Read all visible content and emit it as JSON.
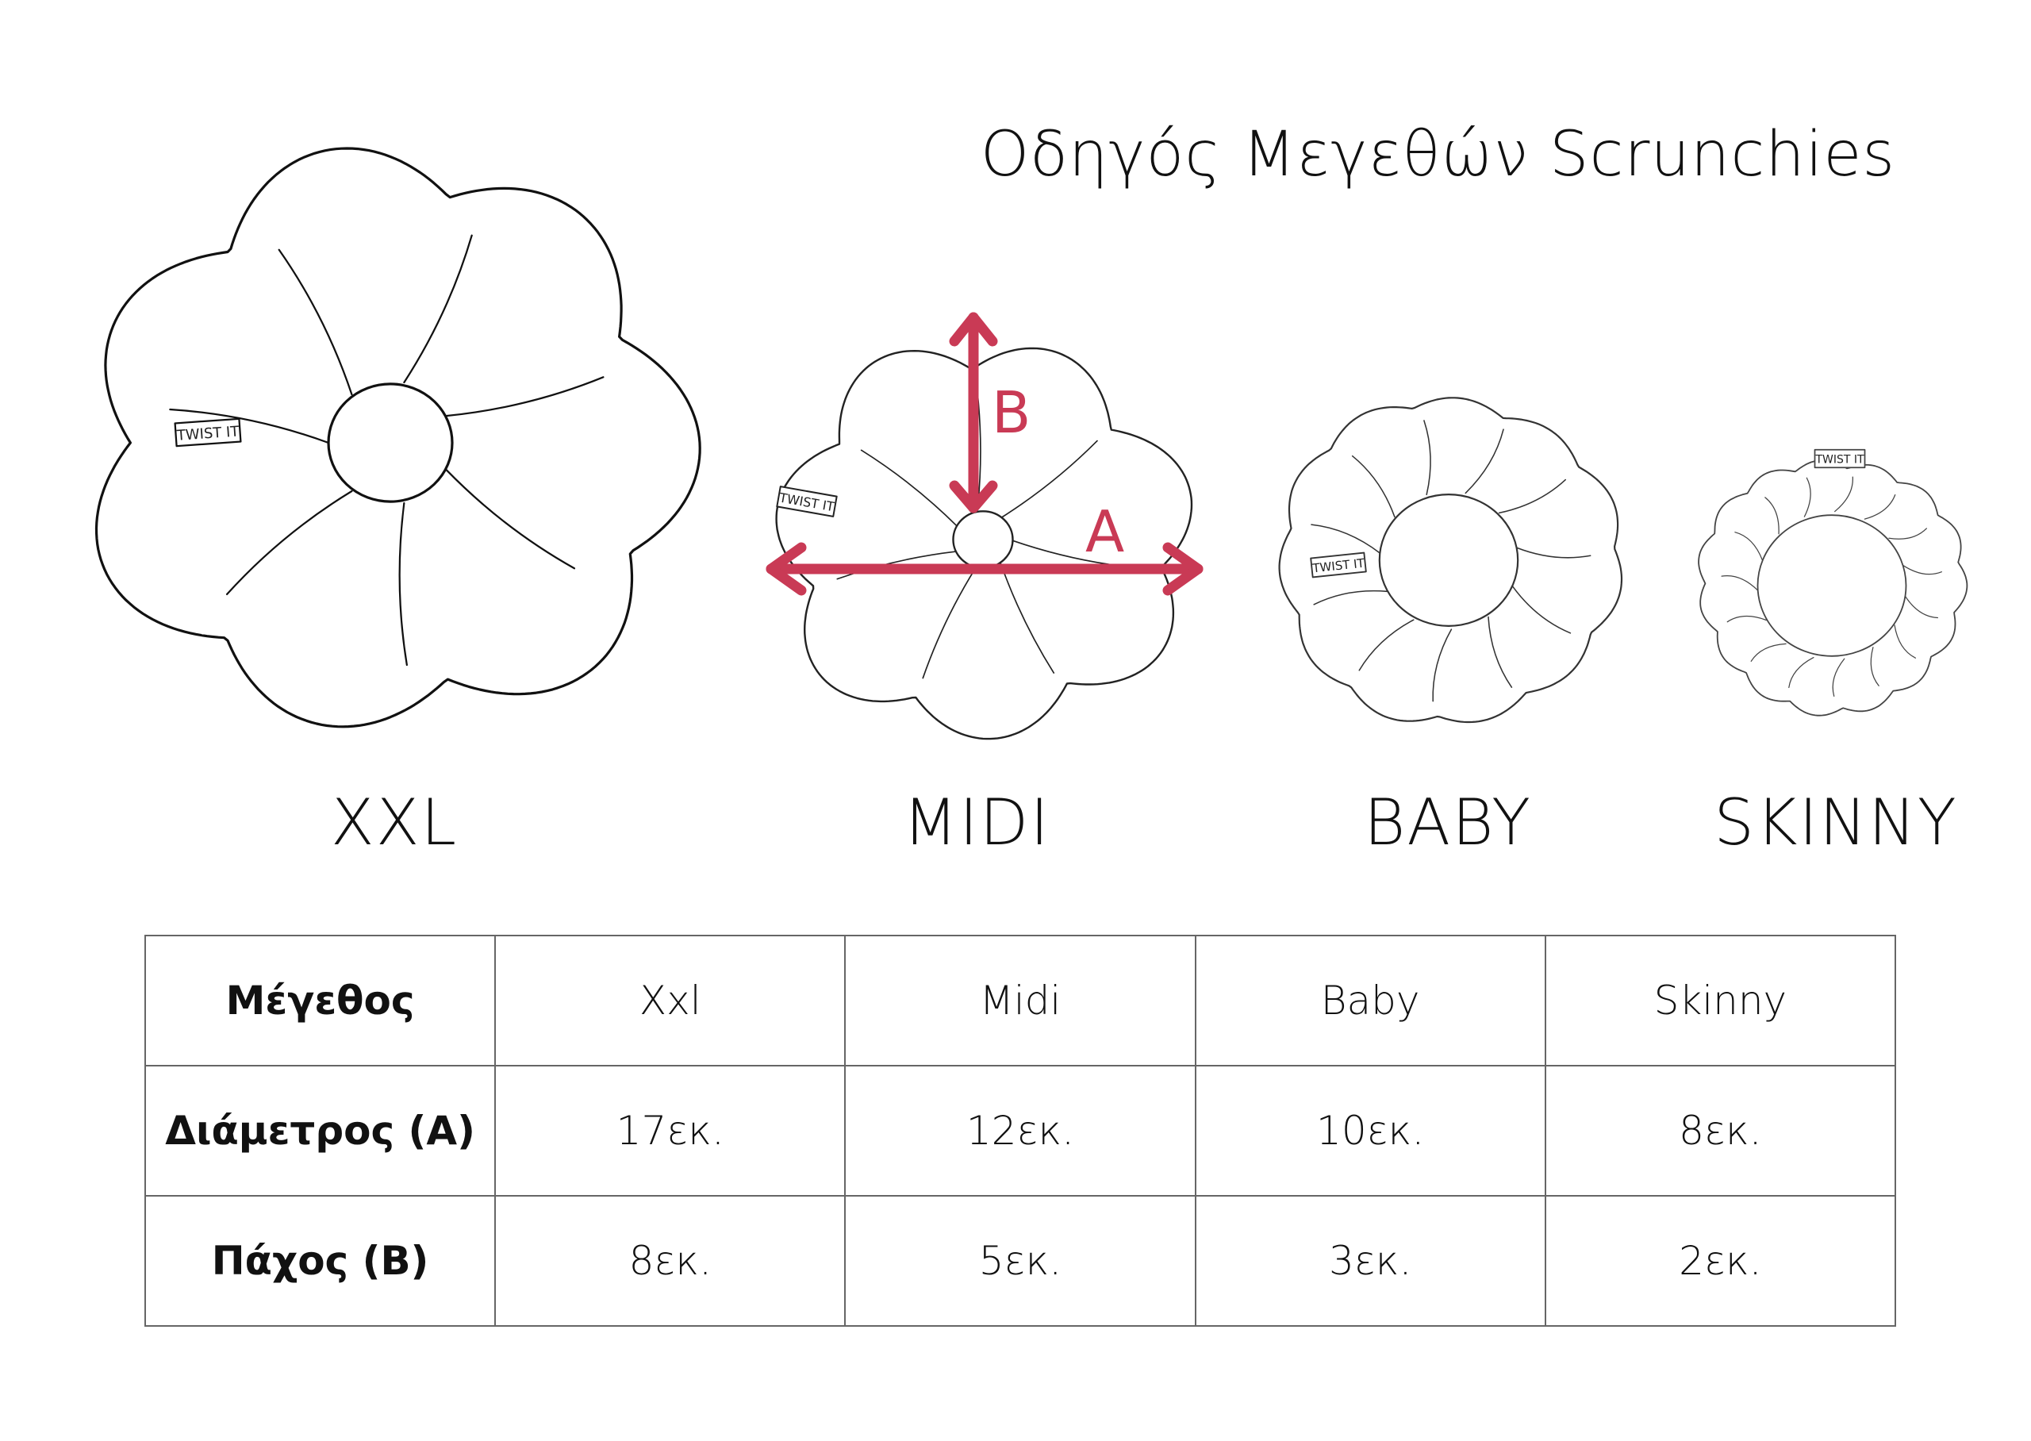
{
  "title": "Οδηγός Μεγεθών Scrunchies",
  "accent_color": "#c93a55",
  "brand_tag": "TWIST IT",
  "measure_labels": {
    "diameter": "A",
    "thickness": "B"
  },
  "sizes": [
    {
      "label": "XXL"
    },
    {
      "label": "MIDI"
    },
    {
      "label": "BABY"
    },
    {
      "label": "SKINNY"
    }
  ],
  "table": {
    "rows": [
      [
        "Μέγεθος",
        "Xxl",
        "Midi",
        "Baby",
        "Skinny"
      ],
      [
        "Διάμετρος (A)",
        "17εκ.",
        "12εκ.",
        "10εκ.",
        "8εκ."
      ],
      [
        "Πάχος (B)",
        "8εκ.",
        "5εκ.",
        "3εκ.",
        "2εκ."
      ]
    ]
  }
}
